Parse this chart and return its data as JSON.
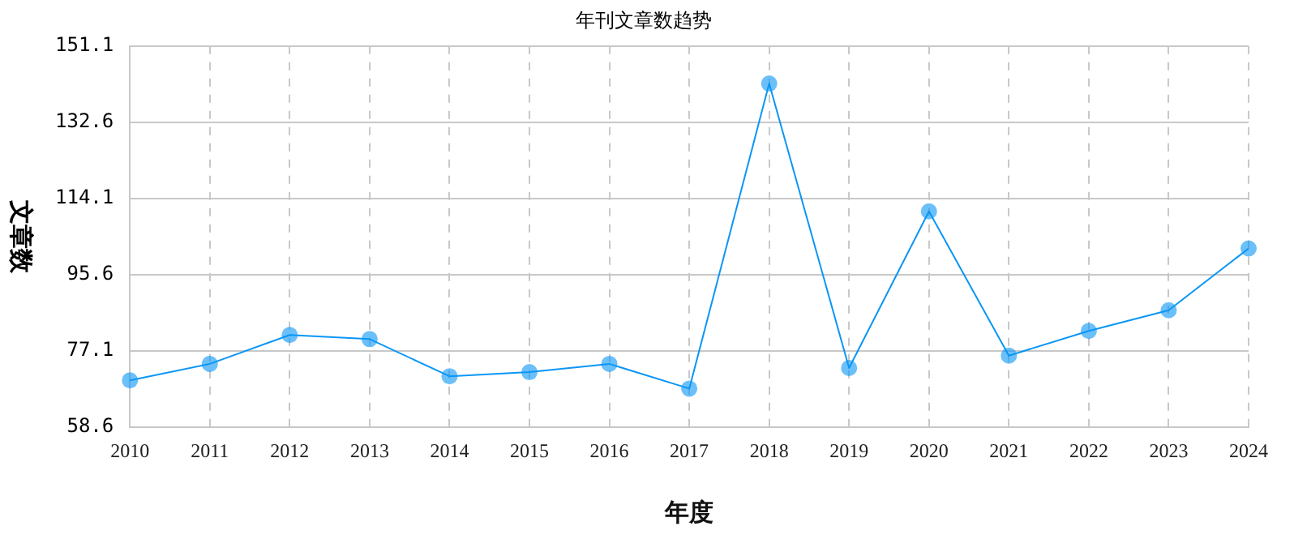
{
  "chart_data": {
    "type": "line",
    "title": "年刊文章数趋势",
    "xlabel": "年度",
    "ylabel": "文章数",
    "categories": [
      "2010",
      "2011",
      "2012",
      "2013",
      "2014",
      "2015",
      "2016",
      "2017",
      "2018",
      "2019",
      "2020",
      "2021",
      "2022",
      "2023",
      "2024"
    ],
    "series": [
      {
        "color": "#0a96f5",
        "values": [
          70,
          74,
          81,
          80,
          71,
          72,
          74,
          68,
          142,
          73,
          111,
          76,
          82,
          87,
          102
        ]
      }
    ],
    "ylim": [
      58.6,
      151.1
    ],
    "yticks": [
      58.6,
      77.1,
      95.6,
      114.1,
      132.6,
      151.1
    ],
    "grid": true,
    "legend": false,
    "marker": "circle",
    "line_style": "solid"
  }
}
